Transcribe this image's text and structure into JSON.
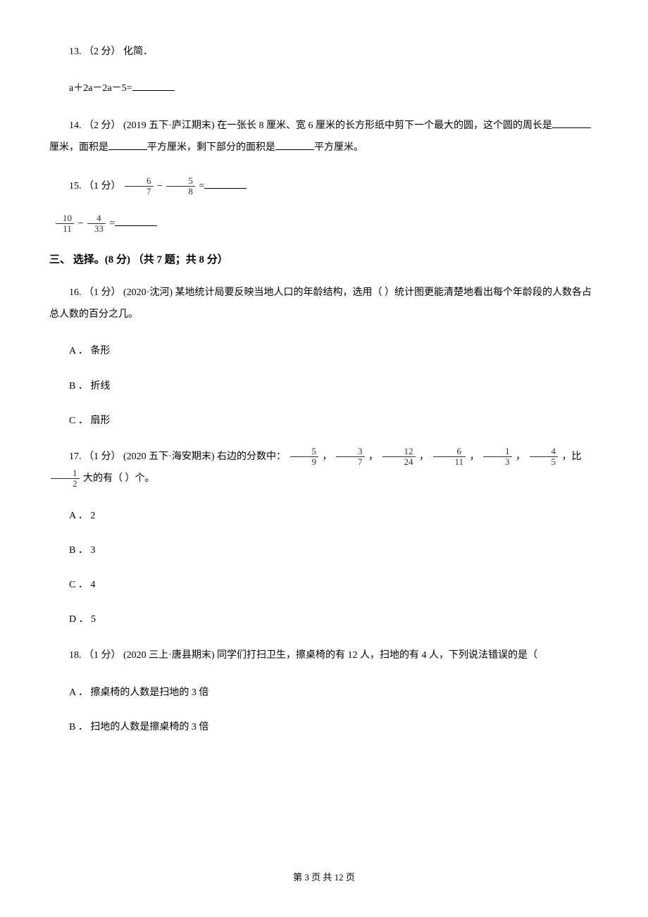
{
  "q13": {
    "line1": "13. （2 分） 化简．",
    "line2_prefix": "a＋2a－2a－5="
  },
  "q14": {
    "prefix": "14. （2 分） (2019 五下·庐江期末) 在一张长 8 厘米、宽 6 厘米的长方形纸中剪下一个最大的圆，这个圆的周长是",
    "mid1": "厘米，面积是",
    "mid2": "平方厘米，剩下部分的面积是",
    "suffix": "平方厘米。"
  },
  "q15": {
    "prefix": "15. （1 分） ",
    "eq": " =",
    "frac1": {
      "num": "6",
      "den": "7"
    },
    "frac2": {
      "num": "5",
      "den": "8"
    },
    "frac3": {
      "num": "10",
      "den": "11"
    },
    "frac4": {
      "num": "4",
      "den": "33"
    },
    "minus": " − ",
    "eq2": "="
  },
  "section3": {
    "title": "三、 选择。(8 分) （共 7 题；共 8 分）"
  },
  "q16": {
    "text_prefix": "16. （1 分） (2020·沈河) 某地统计局要反映当地人口的年龄结构，选用（    ）统计图更能清楚地看出每个年龄段的人数各占总人数的百分之几。",
    "optA": "A ． 条形",
    "optB": "B ． 折线",
    "optC": "C ． 扇形"
  },
  "q17": {
    "prefix": "17. （1 分） (2020 五下·海安期末) 右边的分数中：",
    "comma": " ， ",
    "suffix_prefix": " ，比 ",
    "suffix_end": " 大的有（    ）个。",
    "fracs": [
      {
        "num": "5",
        "den": "9"
      },
      {
        "num": "3",
        "den": "7"
      },
      {
        "num": "12",
        "den": "24"
      },
      {
        "num": "6",
        "den": "11"
      },
      {
        "num": "1",
        "den": "3"
      },
      {
        "num": "4",
        "den": "5"
      },
      {
        "num": "1",
        "den": "2"
      }
    ],
    "optA": "A ． 2",
    "optB": "B ． 3",
    "optC": "C ． 4",
    "optD": "D ． 5"
  },
  "q18": {
    "text": "18. （1 分） (2020 三上·唐县期末) 同学们打扫卫生，擦桌椅的有 12 人，扫地的有 4 人，下列说法错误的是（",
    "optA": "A ． 擦桌椅的人数是扫地的 3 倍",
    "optB": "B ． 扫地的人数是擦桌椅的 3 倍"
  },
  "footer": {
    "text": "第 3 页 共 12 页"
  }
}
